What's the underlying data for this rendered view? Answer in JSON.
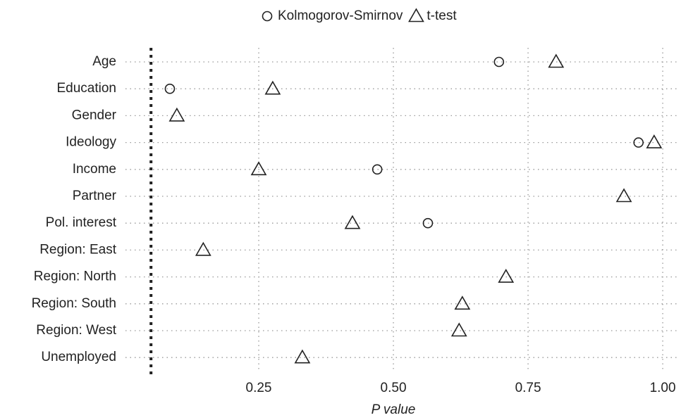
{
  "chart_data": {
    "type": "dot",
    "x_label": "P value",
    "categories": [
      "Age",
      "Education",
      "Gender",
      "Ideology",
      "Income",
      "Partner",
      "Pol. interest",
      "Region: East",
      "Region: North",
      "Region: South",
      "Region: West",
      "Unemployed"
    ],
    "series": [
      {
        "name": "Kolmogorov-Smirnov",
        "marker": "circle",
        "color": "#222222",
        "values": [
          0.696,
          0.085,
          null,
          0.955,
          0.47,
          null,
          0.564,
          null,
          null,
          null,
          null,
          null
        ]
      },
      {
        "name": "t-test",
        "marker": "triangle",
        "color": "#222222",
        "values": [
          0.802,
          0.276,
          0.098,
          0.984,
          0.25,
          0.928,
          0.424,
          0.147,
          0.709,
          0.628,
          0.622,
          0.331
        ]
      }
    ],
    "xlim": [
      0,
      1.03
    ],
    "xticks": [
      0.25,
      {
        "value": 0.5,
        "label": "0.50"
      },
      0.75,
      {
        "value": 1,
        "label": "1.00"
      }
    ],
    "reference_line": 0.05,
    "grid": true
  }
}
